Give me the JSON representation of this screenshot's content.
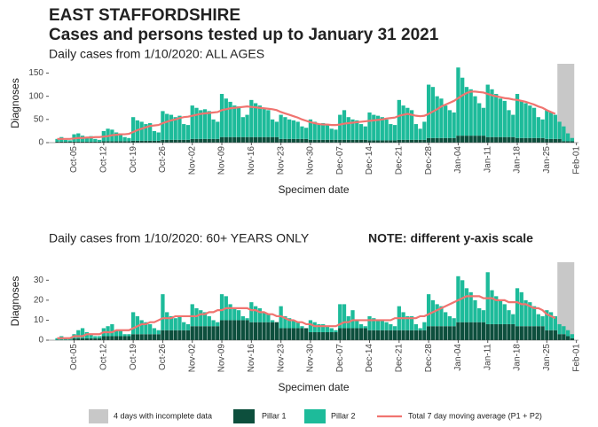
{
  "title": "EAST STAFFORDSHIRE",
  "subtitle": "Cases and persons tested up to January 31 2021",
  "chart_data": [
    {
      "type": "bar",
      "stacked": true,
      "panel_title": "Daily cases from 1/10/2020: ALL AGES",
      "xlabel": "Specimen date",
      "ylabel": "Diagnoses",
      "grid": false,
      "x": [
        0,
        1,
        2,
        3,
        4,
        5,
        6,
        7,
        8,
        9,
        10,
        11,
        12,
        13,
        14,
        15,
        16,
        17,
        18,
        19,
        20,
        21,
        22,
        23,
        24,
        25,
        26,
        27,
        28,
        29,
        30,
        31,
        32,
        33,
        34,
        35,
        36,
        37,
        38,
        39,
        40,
        41,
        42,
        43,
        44,
        45,
        46,
        47,
        48,
        49,
        50,
        51,
        52,
        53,
        54,
        55,
        56,
        57,
        58,
        59,
        60,
        61,
        62,
        63,
        64,
        65,
        66,
        67,
        68,
        69,
        70,
        71,
        72,
        73,
        74,
        75,
        76,
        77,
        78,
        79,
        80,
        81,
        82,
        83,
        84,
        85,
        86,
        87,
        88,
        89,
        90,
        91,
        92,
        93,
        94,
        95,
        96,
        97,
        98,
        99,
        100,
        101,
        102,
        103,
        104,
        105,
        106,
        107,
        108,
        109,
        110,
        111,
        112,
        113,
        114,
        115,
        116,
        117,
        118,
        119,
        120,
        121,
        122
      ],
      "xlim": [
        -2,
        123.5
      ],
      "xticks": [
        {
          "value": 4,
          "label": "Oct-05"
        },
        {
          "value": 11,
          "label": "Oct-12"
        },
        {
          "value": 18,
          "label": "Oct-19"
        },
        {
          "value": 25,
          "label": "Oct-26"
        },
        {
          "value": 32,
          "label": "Nov-02"
        },
        {
          "value": 39,
          "label": "Nov-09"
        },
        {
          "value": 46,
          "label": "Nov-16"
        },
        {
          "value": 53,
          "label": "Nov-23"
        },
        {
          "value": 60,
          "label": "Nov-30"
        },
        {
          "value": 67,
          "label": "Dec-07"
        },
        {
          "value": 74,
          "label": "Dec-14"
        },
        {
          "value": 81,
          "label": "Dec-21"
        },
        {
          "value": 88,
          "label": "Dec-28"
        },
        {
          "value": 95,
          "label": "Jan-04"
        },
        {
          "value": 102,
          "label": "Jan-11"
        },
        {
          "value": 109,
          "label": "Jan-18"
        },
        {
          "value": 116,
          "label": "Jan-25"
        },
        {
          "value": 123,
          "label": "Feb-01"
        }
      ],
      "ylim": [
        0,
        170
      ],
      "yticks": [
        0,
        50,
        100,
        150
      ],
      "shade": {
        "name": "4 days with incomplete data",
        "color": "#c8c8c8",
        "xrange": [
          119,
          122
        ]
      },
      "series": [
        {
          "name": "Pillar 1",
          "type": "bar",
          "color": "#0d4f3d",
          "values": [
            2,
            2,
            2,
            2,
            2,
            2,
            2,
            2,
            2,
            2,
            2,
            3,
            3,
            3,
            3,
            3,
            3,
            3,
            4,
            4,
            4,
            4,
            4,
            4,
            4,
            6,
            6,
            6,
            6,
            6,
            6,
            6,
            8,
            8,
            8,
            8,
            8,
            8,
            8,
            12,
            12,
            12,
            12,
            12,
            12,
            12,
            12,
            12,
            12,
            12,
            12,
            12,
            12,
            8,
            8,
            8,
            8,
            8,
            8,
            8,
            6,
            6,
            6,
            6,
            6,
            6,
            6,
            6,
            6,
            6,
            6,
            6,
            6,
            6,
            5,
            5,
            5,
            5,
            5,
            5,
            5,
            6,
            6,
            6,
            6,
            6,
            6,
            6,
            10,
            10,
            10,
            10,
            10,
            10,
            10,
            15,
            15,
            15,
            15,
            15,
            15,
            15,
            12,
            12,
            12,
            12,
            12,
            12,
            12,
            10,
            10,
            10,
            10,
            10,
            10,
            10,
            8,
            8,
            8,
            8,
            3,
            3,
            3
          ]
        },
        {
          "name": "Pillar 2",
          "type": "bar",
          "color": "#1dbb9a",
          "values": [
            6,
            10,
            4,
            3,
            16,
            18,
            13,
            10,
            12,
            6,
            4,
            22,
            27,
            25,
            19,
            17,
            9,
            7,
            51,
            44,
            41,
            36,
            38,
            21,
            18,
            62,
            56,
            54,
            49,
            52,
            34,
            32,
            72,
            67,
            62,
            64,
            60,
            42,
            37,
            93,
            83,
            76,
            68,
            66,
            43,
            48,
            80,
            73,
            68,
            63,
            58,
            38,
            33,
            52,
            47,
            42,
            40,
            37,
            27,
            24,
            44,
            39,
            34,
            36,
            32,
            24,
            22,
            54,
            64,
            49,
            44,
            42,
            34,
            29,
            60,
            55,
            53,
            50,
            45,
            35,
            33,
            86,
            74,
            69,
            64,
            34,
            24,
            39,
            115,
            110,
            90,
            85,
            70,
            60,
            55,
            147,
            125,
            105,
            100,
            85,
            70,
            60,
            113,
            103,
            93,
            83,
            78,
            58,
            48,
            95,
            80,
            75,
            70,
            65,
            45,
            40,
            62,
            57,
            52,
            37,
            32,
            17,
            7
          ]
        },
        {
          "name": "Total 7 day moving average (P1 + P2)",
          "type": "line",
          "color": "#f07470",
          "values": [
            8,
            8,
            8,
            8,
            9,
            10,
            10,
            11,
            11,
            12,
            12,
            13,
            14,
            16,
            17,
            18,
            18,
            19,
            23,
            27,
            30,
            33,
            36,
            37,
            38,
            42,
            45,
            48,
            50,
            53,
            55,
            56,
            58,
            60,
            62,
            63,
            64,
            65,
            66,
            70,
            72,
            74,
            75,
            76,
            77,
            78,
            77,
            76,
            75,
            74,
            73,
            72,
            70,
            66,
            63,
            60,
            57,
            54,
            50,
            47,
            44,
            42,
            40,
            39,
            39,
            38,
            38,
            39,
            41,
            42,
            43,
            44,
            45,
            46,
            47,
            48,
            49,
            50,
            52,
            53,
            54,
            58,
            60,
            62,
            60,
            58,
            57,
            58,
            62,
            67,
            72,
            78,
            82,
            86,
            90,
            96,
            102,
            107,
            110,
            110,
            109,
            108,
            105,
            102,
            100,
            98,
            96,
            95,
            93,
            92,
            90,
            88,
            85,
            82,
            78,
            75,
            70,
            66,
            62,
            null,
            null,
            null,
            null
          ]
        }
      ]
    },
    {
      "type": "bar",
      "stacked": true,
      "panel_title": "Daily cases from 1/10/2020: 60+ YEARS ONLY",
      "note": "NOTE: different y-axis scale",
      "xlabel": "Specimen date",
      "ylabel": "Diagnoses",
      "grid": false,
      "x": [
        0,
        1,
        2,
        3,
        4,
        5,
        6,
        7,
        8,
        9,
        10,
        11,
        12,
        13,
        14,
        15,
        16,
        17,
        18,
        19,
        20,
        21,
        22,
        23,
        24,
        25,
        26,
        27,
        28,
        29,
        30,
        31,
        32,
        33,
        34,
        35,
        36,
        37,
        38,
        39,
        40,
        41,
        42,
        43,
        44,
        45,
        46,
        47,
        48,
        49,
        50,
        51,
        52,
        53,
        54,
        55,
        56,
        57,
        58,
        59,
        60,
        61,
        62,
        63,
        64,
        65,
        66,
        67,
        68,
        69,
        70,
        71,
        72,
        73,
        74,
        75,
        76,
        77,
        78,
        79,
        80,
        81,
        82,
        83,
        84,
        85,
        86,
        87,
        88,
        89,
        90,
        91,
        92,
        93,
        94,
        95,
        96,
        97,
        98,
        99,
        100,
        101,
        102,
        103,
        104,
        105,
        106,
        107,
        108,
        109,
        110,
        111,
        112,
        113,
        114,
        115,
        116,
        117,
        118,
        119,
        120,
        121,
        122
      ],
      "xlim": [
        -2,
        123.5
      ],
      "xticks": [
        {
          "value": 4,
          "label": "Oct-05"
        },
        {
          "value": 11,
          "label": "Oct-12"
        },
        {
          "value": 18,
          "label": "Oct-19"
        },
        {
          "value": 25,
          "label": "Oct-26"
        },
        {
          "value": 32,
          "label": "Nov-02"
        },
        {
          "value": 39,
          "label": "Nov-09"
        },
        {
          "value": 46,
          "label": "Nov-16"
        },
        {
          "value": 53,
          "label": "Nov-23"
        },
        {
          "value": 60,
          "label": "Nov-30"
        },
        {
          "value": 67,
          "label": "Dec-07"
        },
        {
          "value": 74,
          "label": "Dec-14"
        },
        {
          "value": 81,
          "label": "Dec-21"
        },
        {
          "value": 88,
          "label": "Dec-28"
        },
        {
          "value": 95,
          "label": "Jan-04"
        },
        {
          "value": 102,
          "label": "Jan-11"
        },
        {
          "value": 109,
          "label": "Jan-18"
        },
        {
          "value": 116,
          "label": "Jan-25"
        },
        {
          "value": 123,
          "label": "Feb-01"
        }
      ],
      "ylim": [
        0,
        39
      ],
      "yticks": [
        0,
        10,
        20,
        30
      ],
      "shade": {
        "name": "4 days with incomplete data",
        "color": "#c8c8c8",
        "xrange": [
          119,
          122
        ]
      },
      "series": [
        {
          "name": "Pillar 1",
          "type": "bar",
          "color": "#0d4f3d",
          "values": [
            0,
            0,
            0,
            0,
            1,
            1,
            1,
            1,
            1,
            1,
            1,
            2,
            2,
            2,
            2,
            2,
            2,
            2,
            3,
            3,
            3,
            3,
            3,
            3,
            3,
            5,
            5,
            5,
            5,
            5,
            5,
            5,
            7,
            7,
            7,
            7,
            7,
            7,
            7,
            10,
            10,
            10,
            10,
            10,
            10,
            10,
            9,
            9,
            9,
            9,
            9,
            9,
            9,
            6,
            6,
            6,
            6,
            6,
            6,
            6,
            4,
            4,
            4,
            4,
            4,
            4,
            4,
            6,
            6,
            6,
            6,
            6,
            6,
            6,
            5,
            5,
            5,
            5,
            5,
            5,
            5,
            5,
            5,
            5,
            5,
            5,
            5,
            5,
            7,
            7,
            7,
            7,
            7,
            7,
            7,
            9,
            9,
            9,
            9,
            9,
            9,
            9,
            8,
            8,
            8,
            8,
            8,
            8,
            8,
            7,
            7,
            7,
            7,
            7,
            7,
            7,
            5,
            5,
            5,
            3,
            3,
            2,
            1
          ]
        },
        {
          "name": "Pillar 2",
          "type": "bar",
          "color": "#1dbb9a",
          "values": [
            1,
            2,
            1,
            1,
            2,
            4,
            5,
            3,
            2,
            1,
            1,
            4,
            5,
            6,
            3,
            3,
            1,
            1,
            11,
            9,
            7,
            6,
            5,
            3,
            2,
            18,
            9,
            7,
            6,
            7,
            4,
            3,
            11,
            9,
            8,
            7,
            5,
            3,
            2,
            13,
            12,
            8,
            6,
            5,
            2,
            1,
            10,
            8,
            7,
            5,
            4,
            1,
            0,
            11,
            6,
            5,
            4,
            3,
            1,
            0,
            6,
            5,
            4,
            4,
            3,
            2,
            1,
            12,
            12,
            6,
            9,
            4,
            2,
            1,
            7,
            6,
            5,
            5,
            4,
            3,
            2,
            12,
            9,
            7,
            7,
            3,
            1,
            4,
            16,
            13,
            11,
            10,
            7,
            5,
            4,
            23,
            21,
            17,
            15,
            11,
            7,
            6,
            26,
            17,
            14,
            12,
            10,
            7,
            5,
            19,
            17,
            13,
            12,
            10,
            6,
            5,
            10,
            9,
            7,
            5,
            4,
            3,
            2
          ]
        },
        {
          "name": "Total 7 day moving average (P1 + P2)",
          "type": "line",
          "color": "#f07470",
          "values": [
            1,
            1,
            1,
            1,
            2,
            2,
            2,
            3,
            3,
            3,
            3,
            4,
            4,
            4,
            5,
            5,
            5,
            5,
            6,
            7,
            8,
            8,
            9,
            9,
            10,
            11,
            11,
            11,
            12,
            12,
            12,
            12,
            12,
            12,
            13,
            13,
            14,
            14,
            15,
            15,
            16,
            16,
            16,
            16,
            16,
            16,
            15,
            15,
            14,
            14,
            13,
            13,
            12,
            12,
            11,
            10,
            10,
            9,
            9,
            8,
            8,
            7,
            7,
            7,
            7,
            7,
            7,
            8,
            9,
            9,
            10,
            10,
            10,
            10,
            10,
            10,
            10,
            10,
            10,
            10,
            11,
            11,
            11,
            11,
            11,
            11,
            12,
            12,
            13,
            14,
            15,
            16,
            17,
            18,
            19,
            20,
            21,
            22,
            22,
            22,
            22,
            21,
            21,
            21,
            20,
            20,
            20,
            19,
            19,
            19,
            18,
            18,
            17,
            16,
            16,
            15,
            13,
            12,
            11,
            null,
            null,
            null,
            null
          ]
        }
      ]
    }
  ]
}
